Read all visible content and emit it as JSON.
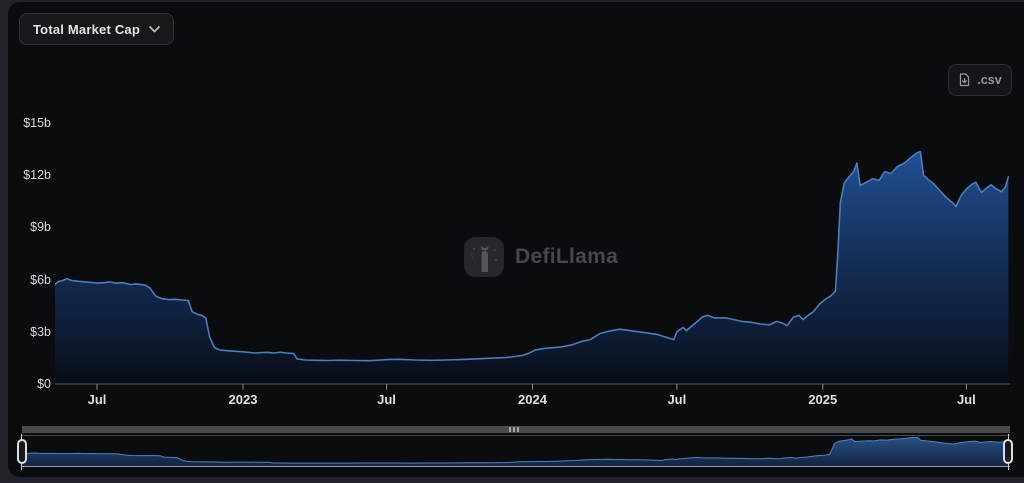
{
  "header": {
    "metric_dropdown": {
      "label": "Total Market Cap",
      "icon": "chevron-down-icon"
    },
    "csv_button": {
      "label": ".csv",
      "icon": "file-download-icon"
    }
  },
  "watermark": {
    "text": "DefiLlama"
  },
  "colors": {
    "page_bg": "#202329",
    "card_bg": "#0b0c0f",
    "line": "#4e7cb7",
    "area_gradient_top": "#215094",
    "area_gradient_bottom": "#080d16",
    "nav_fill_top": "#2a5184",
    "nav_fill_bottom": "#12233f",
    "nav_line": "#5181bb",
    "axis_line": "#55585d",
    "tick_mark": "#8b8d91",
    "x_label": "#dfe0e3",
    "y_label": "#d6d7da",
    "scrollbar": "#494b4f",
    "handle_border": "#dcdde0",
    "watermark_text": "#45484e"
  },
  "chart_data": {
    "type": "area",
    "title": "Total Market Cap",
    "unit": "USD billions",
    "grid": false,
    "legend": null,
    "ylim": [
      0,
      15
    ],
    "y_ticks": [
      {
        "v": 15,
        "label": "$15b"
      },
      {
        "v": 12,
        "label": "$12b"
      },
      {
        "v": 9,
        "label": "$9b"
      },
      {
        "v": 6,
        "label": "$6b"
      },
      {
        "v": 3,
        "label": "$3b"
      },
      {
        "v": 0,
        "label": "$0"
      }
    ],
    "x_domain": [
      "2022-05-09",
      "2025-08-25"
    ],
    "x_ticks": [
      {
        "d": "2022-07-01",
        "label": "Jul",
        "bold": false
      },
      {
        "d": "2023-01-01",
        "label": "2023",
        "bold": true
      },
      {
        "d": "2023-07-01",
        "label": "Jul",
        "bold": false
      },
      {
        "d": "2024-01-01",
        "label": "2024",
        "bold": true
      },
      {
        "d": "2024-07-01",
        "label": "Jul",
        "bold": false
      },
      {
        "d": "2025-01-01",
        "label": "2025",
        "bold": true
      },
      {
        "d": "2025-07-01",
        "label": "Jul",
        "bold": false
      }
    ],
    "series": [
      {
        "name": "Total Market Cap",
        "points": [
          [
            "2022-05-09",
            5.75
          ],
          [
            "2022-05-14",
            5.9
          ],
          [
            "2022-05-19",
            5.95
          ],
          [
            "2022-05-24",
            6.05
          ],
          [
            "2022-05-30",
            5.95
          ],
          [
            "2022-06-08",
            5.9
          ],
          [
            "2022-06-20",
            5.85
          ],
          [
            "2022-07-01",
            5.8
          ],
          [
            "2022-07-10",
            5.82
          ],
          [
            "2022-07-17",
            5.87
          ],
          [
            "2022-07-24",
            5.8
          ],
          [
            "2022-08-02",
            5.82
          ],
          [
            "2022-08-12",
            5.72
          ],
          [
            "2022-08-20",
            5.75
          ],
          [
            "2022-08-31",
            5.68
          ],
          [
            "2022-09-06",
            5.5
          ],
          [
            "2022-09-13",
            5.05
          ],
          [
            "2022-09-21",
            4.9
          ],
          [
            "2022-09-30",
            4.85
          ],
          [
            "2022-10-08",
            4.87
          ],
          [
            "2022-10-16",
            4.83
          ],
          [
            "2022-10-24",
            4.8
          ],
          [
            "2022-10-29",
            4.15
          ],
          [
            "2022-11-05",
            4.0
          ],
          [
            "2022-11-10",
            3.95
          ],
          [
            "2022-11-15",
            3.8
          ],
          [
            "2022-11-20",
            2.7
          ],
          [
            "2022-11-26",
            2.1
          ],
          [
            "2022-12-03",
            1.95
          ],
          [
            "2022-12-16",
            1.9
          ],
          [
            "2023-01-01",
            1.85
          ],
          [
            "2023-01-16",
            1.78
          ],
          [
            "2023-01-31",
            1.82
          ],
          [
            "2023-02-10",
            1.78
          ],
          [
            "2023-02-17",
            1.83
          ],
          [
            "2023-02-25",
            1.78
          ],
          [
            "2023-03-06",
            1.75
          ],
          [
            "2023-03-10",
            1.45
          ],
          [
            "2023-03-20",
            1.38
          ],
          [
            "2023-04-03",
            1.36
          ],
          [
            "2023-04-18",
            1.35
          ],
          [
            "2023-05-03",
            1.37
          ],
          [
            "2023-05-22",
            1.35
          ],
          [
            "2023-06-10",
            1.34
          ],
          [
            "2023-07-02",
            1.4
          ],
          [
            "2023-07-18",
            1.42
          ],
          [
            "2023-08-06",
            1.38
          ],
          [
            "2023-08-25",
            1.36
          ],
          [
            "2023-09-13",
            1.38
          ],
          [
            "2023-10-02",
            1.4
          ],
          [
            "2023-10-21",
            1.44
          ],
          [
            "2023-11-09",
            1.48
          ],
          [
            "2023-11-28",
            1.52
          ],
          [
            "2023-12-10",
            1.58
          ],
          [
            "2023-12-20",
            1.65
          ],
          [
            "2023-12-28",
            1.78
          ],
          [
            "2024-01-04",
            1.95
          ],
          [
            "2024-01-17",
            2.05
          ],
          [
            "2024-02-05",
            2.12
          ],
          [
            "2024-02-20",
            2.25
          ],
          [
            "2024-03-03",
            2.45
          ],
          [
            "2024-03-14",
            2.55
          ],
          [
            "2024-03-26",
            2.9
          ],
          [
            "2024-04-08",
            3.05
          ],
          [
            "2024-04-20",
            3.15
          ],
          [
            "2024-05-06",
            3.05
          ],
          [
            "2024-05-22",
            2.95
          ],
          [
            "2024-06-06",
            2.85
          ],
          [
            "2024-06-20",
            2.65
          ],
          [
            "2024-06-27",
            2.55
          ],
          [
            "2024-07-01",
            3.0
          ],
          [
            "2024-07-09",
            3.25
          ],
          [
            "2024-07-13",
            3.05
          ],
          [
            "2024-07-19",
            3.3
          ],
          [
            "2024-07-27",
            3.6
          ],
          [
            "2024-08-02",
            3.85
          ],
          [
            "2024-08-09",
            3.95
          ],
          [
            "2024-08-17",
            3.8
          ],
          [
            "2024-09-01",
            3.8
          ],
          [
            "2024-09-11",
            3.7
          ],
          [
            "2024-09-21",
            3.6
          ],
          [
            "2024-10-02",
            3.55
          ],
          [
            "2024-10-14",
            3.45
          ],
          [
            "2024-10-26",
            3.4
          ],
          [
            "2024-11-04",
            3.6
          ],
          [
            "2024-11-11",
            3.5
          ],
          [
            "2024-11-17",
            3.35
          ],
          [
            "2024-11-25",
            3.85
          ],
          [
            "2024-12-02",
            3.95
          ],
          [
            "2024-12-07",
            3.7
          ],
          [
            "2024-12-15",
            4.0
          ],
          [
            "2024-12-20",
            4.15
          ],
          [
            "2024-12-28",
            4.6
          ],
          [
            "2025-01-05",
            4.9
          ],
          [
            "2025-01-11",
            5.05
          ],
          [
            "2025-01-17",
            5.35
          ],
          [
            "2025-01-20",
            7.6
          ],
          [
            "2025-01-23",
            10.4
          ],
          [
            "2025-01-28",
            11.55
          ],
          [
            "2025-02-03",
            11.9
          ],
          [
            "2025-02-09",
            12.2
          ],
          [
            "2025-02-13",
            12.7
          ],
          [
            "2025-02-17",
            11.4
          ],
          [
            "2025-02-25",
            11.6
          ],
          [
            "2025-03-05",
            11.8
          ],
          [
            "2025-03-13",
            11.7
          ],
          [
            "2025-03-20",
            12.2
          ],
          [
            "2025-03-28",
            12.1
          ],
          [
            "2025-04-05",
            12.5
          ],
          [
            "2025-04-14",
            12.7
          ],
          [
            "2025-04-23",
            13.05
          ],
          [
            "2025-04-30",
            13.3
          ],
          [
            "2025-05-04",
            13.35
          ],
          [
            "2025-05-08",
            12.0
          ],
          [
            "2025-05-14",
            11.75
          ],
          [
            "2025-05-21",
            11.5
          ],
          [
            "2025-05-29",
            11.1
          ],
          [
            "2025-06-06",
            10.7
          ],
          [
            "2025-06-13",
            10.45
          ],
          [
            "2025-06-18",
            10.2
          ],
          [
            "2025-06-24",
            10.8
          ],
          [
            "2025-07-01",
            11.2
          ],
          [
            "2025-07-07",
            11.45
          ],
          [
            "2025-07-13",
            11.6
          ],
          [
            "2025-07-20",
            11.0
          ],
          [
            "2025-07-26",
            11.25
          ],
          [
            "2025-08-01",
            11.45
          ],
          [
            "2025-08-08",
            11.2
          ],
          [
            "2025-08-14",
            11.05
          ],
          [
            "2025-08-19",
            11.3
          ],
          [
            "2025-08-23",
            11.9
          ]
        ]
      }
    ]
  },
  "navigator": {
    "shows_full_range": true,
    "ylim": [
      0,
      14
    ]
  }
}
